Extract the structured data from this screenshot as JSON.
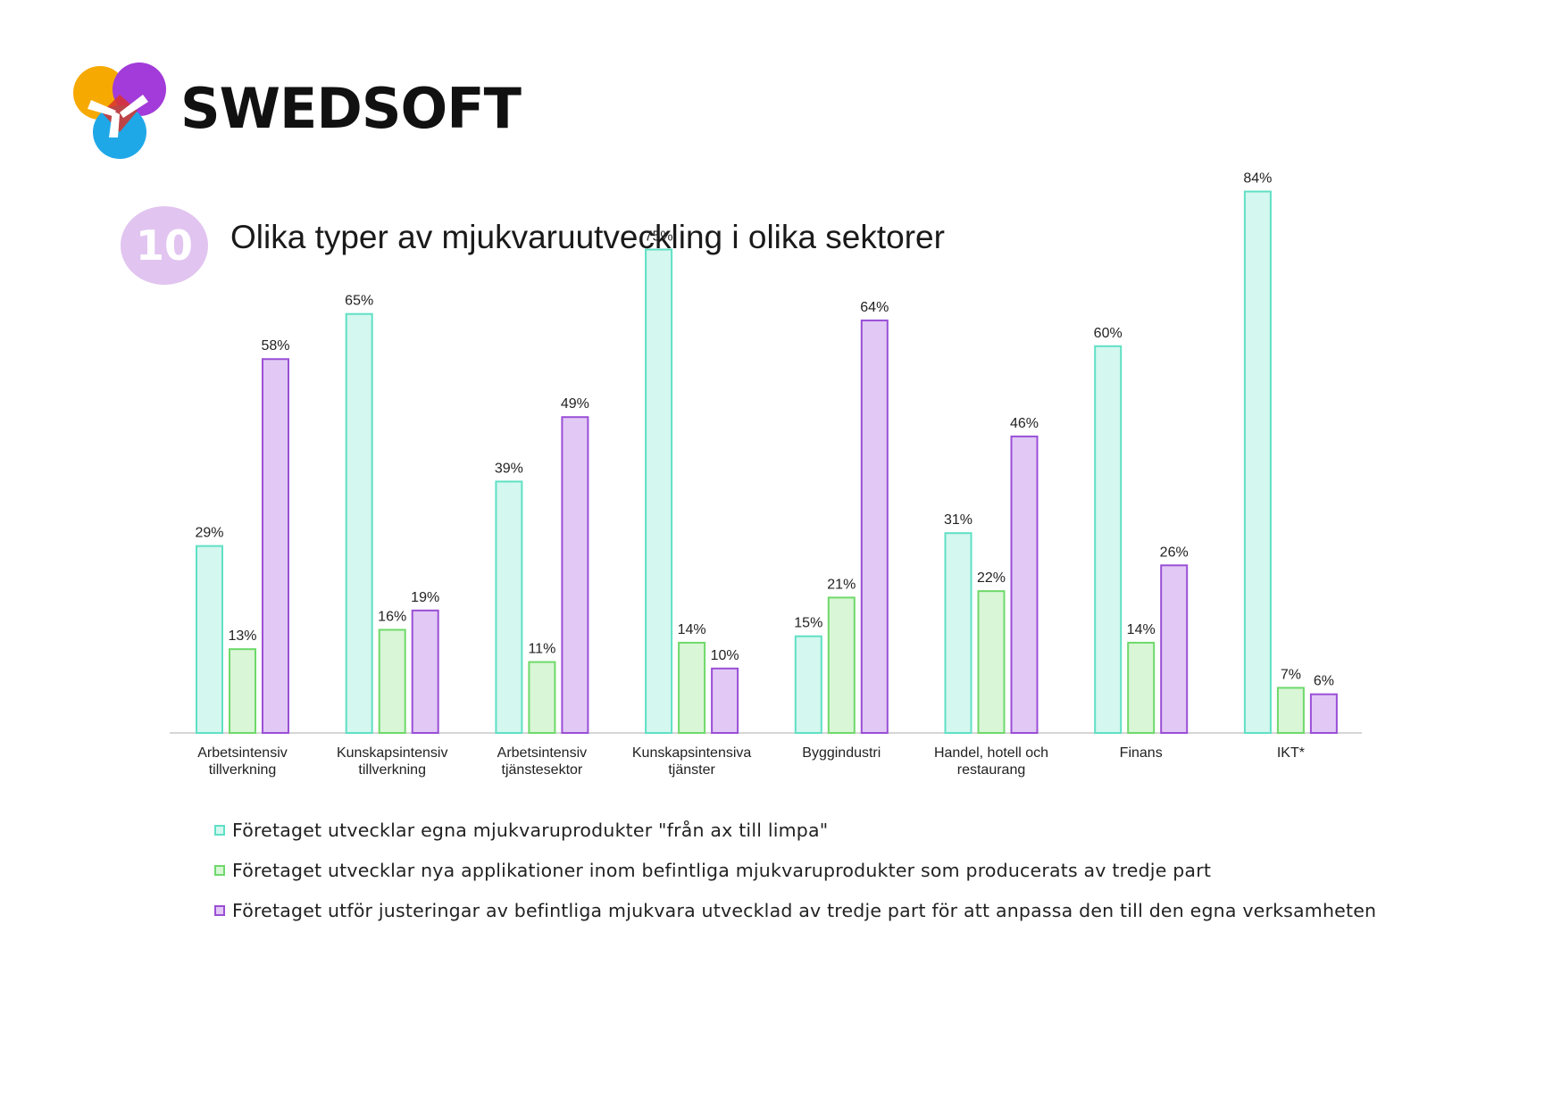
{
  "brand": {
    "name": "SWEDSOFT"
  },
  "badge": {
    "number": "10",
    "color": "#e1c4f0"
  },
  "colors": {
    "series": [
      {
        "fill": "#d4f7ef",
        "stroke": "#5fe0c4"
      },
      {
        "fill": "#d9f6d6",
        "stroke": "#6ed96a"
      },
      {
        "fill": "#e2c9f5",
        "stroke": "#9a4fd6"
      }
    ],
    "axis": "#c8c8c8"
  },
  "chart_data": {
    "type": "bar",
    "title": "Olika typer av mjukvaruutveckling i olika sektorer",
    "categories": [
      [
        "Arbetsintensiv",
        "tillverkning"
      ],
      [
        "Kunskapsintensiv",
        "tillverkning"
      ],
      [
        "Arbetsintensiv",
        "tjänstesektor"
      ],
      [
        "Kunskapsintensiva",
        "tjänster"
      ],
      [
        "Byggindustri"
      ],
      [
        "Handel, hotell och",
        "restaurang"
      ],
      [
        "Finans"
      ],
      [
        "IKT*"
      ]
    ],
    "series": [
      {
        "name": "Företaget utvecklar egna mjukvaruprodukter \"från ax till limpa\"",
        "values": [
          29,
          65,
          39,
          75,
          15,
          31,
          60,
          84
        ]
      },
      {
        "name": "Företaget utvecklar nya applikationer inom befintliga mjukvaruprodukter som producerats av tredje part",
        "values": [
          13,
          16,
          11,
          14,
          21,
          22,
          14,
          7
        ]
      },
      {
        "name": "Företaget utför justeringar av befintliga mjukvara utvecklad av tredje part för att anpassa den till den egna verksamheten",
        "values": [
          58,
          19,
          49,
          10,
          64,
          46,
          26,
          6
        ]
      }
    ],
    "value_suffix": "%",
    "ylim": [
      0,
      100
    ],
    "grid": false,
    "legend_position": "bottom-left"
  }
}
